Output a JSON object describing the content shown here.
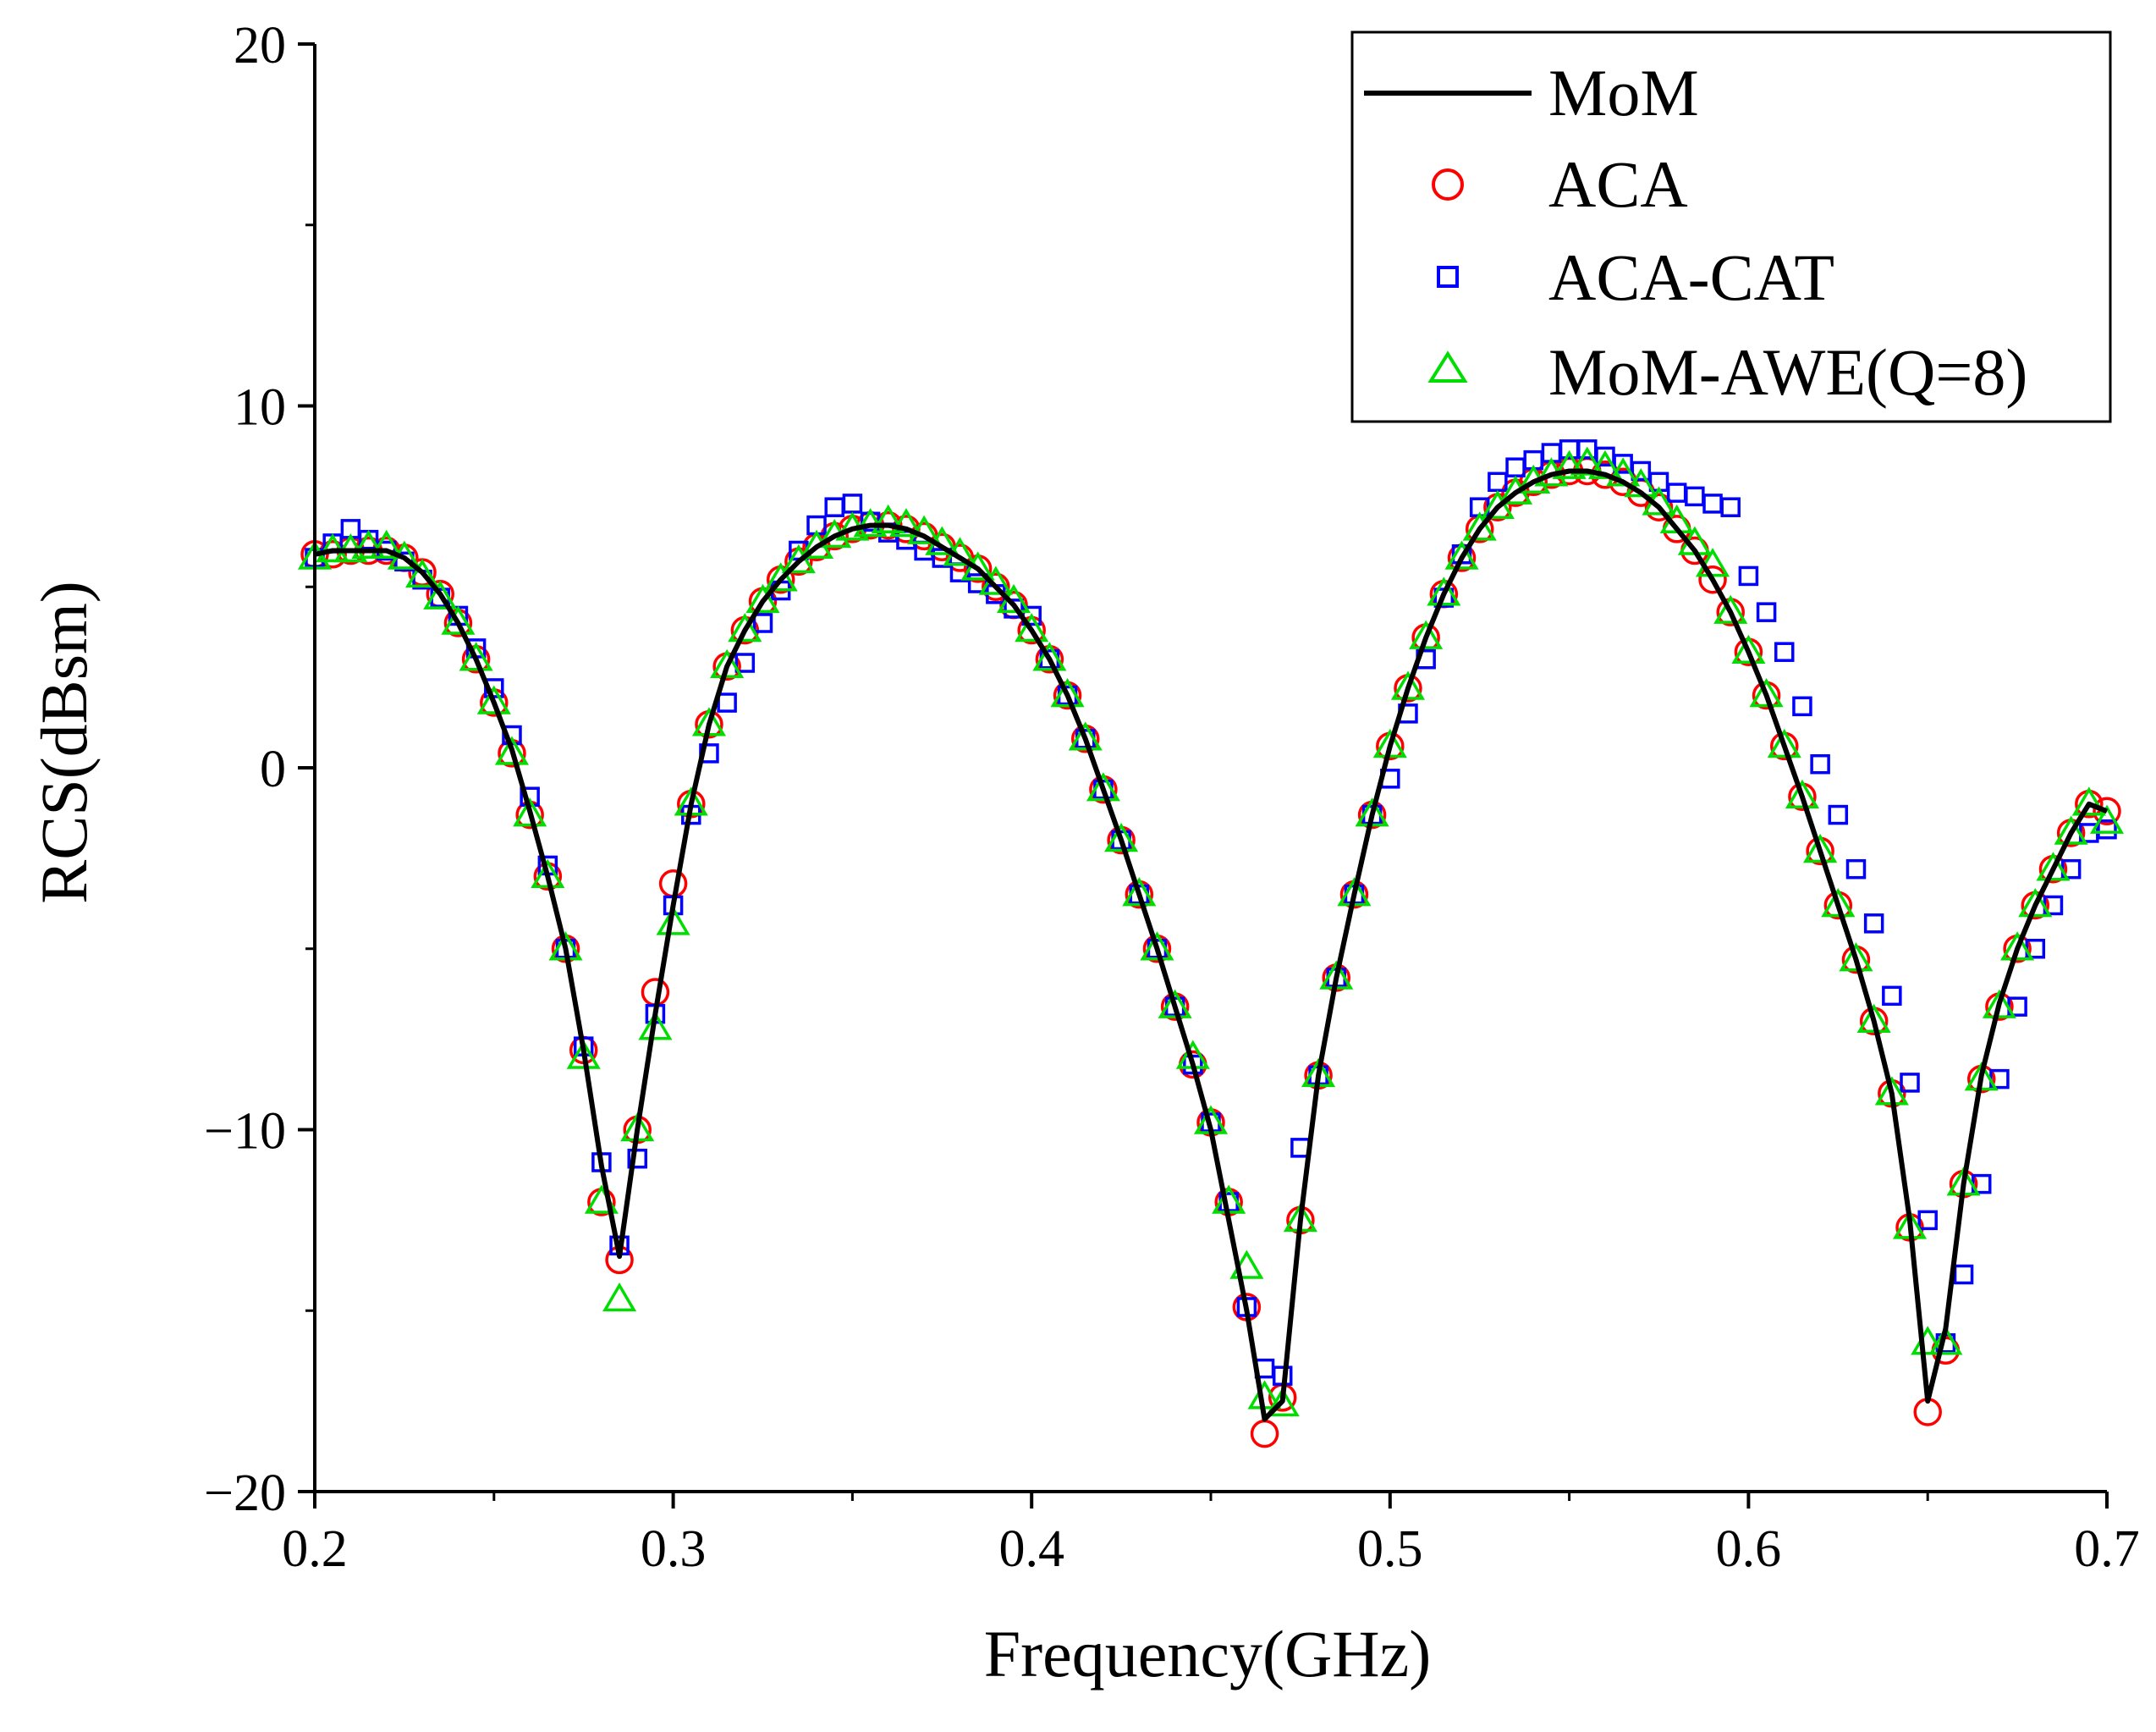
{
  "chart_data": {
    "type": "line",
    "title": "",
    "xlabel": "Frequency(GHz)",
    "ylabel": "RCS(dBsm)",
    "xlim": [
      0.2,
      0.7
    ],
    "ylim": [
      -20,
      20
    ],
    "xticks": [
      0.2,
      0.3,
      0.4,
      0.5,
      0.6,
      0.7
    ],
    "yticks": [
      -20,
      -10,
      0,
      10,
      20
    ],
    "xtick_labels": [
      "0.2",
      "0.3",
      "0.4",
      "0.5",
      "0.6",
      "0.7"
    ],
    "ytick_labels": [
      "−20",
      "−10",
      "0",
      "10",
      "20"
    ],
    "grid": false,
    "legend_position": "top-right",
    "colors": {
      "MoM": "#000000",
      "ACA": "#ff0000",
      "ACA-CAT": "#0000ff",
      "MoM-AWE(Q=8)": "#00dd00"
    },
    "series": [
      {
        "name": "MoM",
        "marker": "line",
        "x": [
          0.2,
          0.205,
          0.21,
          0.215,
          0.22,
          0.225,
          0.23,
          0.235,
          0.24,
          0.245,
          0.25,
          0.255,
          0.26,
          0.265,
          0.27,
          0.275,
          0.28,
          0.285,
          0.29,
          0.295,
          0.3,
          0.305,
          0.31,
          0.315,
          0.32,
          0.325,
          0.33,
          0.335,
          0.34,
          0.345,
          0.35,
          0.355,
          0.36,
          0.365,
          0.37,
          0.375,
          0.38,
          0.385,
          0.39,
          0.395,
          0.4,
          0.405,
          0.41,
          0.415,
          0.42,
          0.425,
          0.43,
          0.435,
          0.44,
          0.445,
          0.45,
          0.455,
          0.46,
          0.465,
          0.47,
          0.475,
          0.48,
          0.485,
          0.49,
          0.495,
          0.5,
          0.505,
          0.51,
          0.515,
          0.52,
          0.525,
          0.53,
          0.535,
          0.54,
          0.545,
          0.55,
          0.555,
          0.56,
          0.565,
          0.57,
          0.575,
          0.58,
          0.585,
          0.59,
          0.595,
          0.6,
          0.605,
          0.61,
          0.615,
          0.62,
          0.625,
          0.63,
          0.635,
          0.64,
          0.645,
          0.65,
          0.655,
          0.66,
          0.665,
          0.67,
          0.675,
          0.68,
          0.685,
          0.69,
          0.695,
          0.7
        ],
        "y": [
          5.9,
          6.0,
          6.0,
          6.0,
          6.0,
          5.8,
          5.4,
          4.8,
          4.0,
          3.0,
          1.8,
          0.5,
          -1.2,
          -3.0,
          -5.0,
          -7.8,
          -11.0,
          -13.5,
          -10.0,
          -6.8,
          -3.8,
          -1.0,
          1.2,
          2.8,
          3.8,
          4.6,
          5.2,
          5.7,
          6.1,
          6.4,
          6.6,
          6.7,
          6.7,
          6.6,
          6.4,
          6.1,
          5.8,
          5.5,
          5.0,
          4.5,
          3.8,
          3.0,
          2.0,
          0.8,
          -0.6,
          -2.0,
          -3.5,
          -5.0,
          -6.6,
          -8.2,
          -10.0,
          -12.5,
          -15.0,
          -18.0,
          -17.5,
          -12.5,
          -8.5,
          -5.8,
          -3.5,
          -1.3,
          0.6,
          2.2,
          3.6,
          4.8,
          5.8,
          6.6,
          7.2,
          7.6,
          7.9,
          8.1,
          8.2,
          8.2,
          8.1,
          7.9,
          7.6,
          7.2,
          6.6,
          6.0,
          5.2,
          4.3,
          3.2,
          2.0,
          0.6,
          -0.8,
          -2.3,
          -3.8,
          -5.3,
          -7.0,
          -9.0,
          -12.5,
          -17.5,
          -15.5,
          -11.5,
          -8.5,
          -6.5,
          -5.0,
          -3.8,
          -2.8,
          -1.8,
          -1.0,
          -1.2
        ]
      },
      {
        "name": "ACA",
        "marker": "circle",
        "x": [
          0.2,
          0.205,
          0.21,
          0.215,
          0.22,
          0.225,
          0.23,
          0.235,
          0.24,
          0.245,
          0.25,
          0.255,
          0.26,
          0.265,
          0.27,
          0.275,
          0.28,
          0.285,
          0.29,
          0.295,
          0.3,
          0.305,
          0.31,
          0.315,
          0.32,
          0.325,
          0.33,
          0.335,
          0.34,
          0.345,
          0.35,
          0.355,
          0.36,
          0.365,
          0.37,
          0.375,
          0.38,
          0.385,
          0.39,
          0.395,
          0.4,
          0.405,
          0.41,
          0.415,
          0.42,
          0.425,
          0.43,
          0.435,
          0.44,
          0.445,
          0.45,
          0.455,
          0.46,
          0.465,
          0.47,
          0.475,
          0.48,
          0.485,
          0.49,
          0.495,
          0.5,
          0.505,
          0.51,
          0.515,
          0.52,
          0.525,
          0.53,
          0.535,
          0.54,
          0.545,
          0.55,
          0.555,
          0.56,
          0.565,
          0.57,
          0.575,
          0.58,
          0.585,
          0.59,
          0.595,
          0.6,
          0.605,
          0.61,
          0.615,
          0.62,
          0.625,
          0.63,
          0.635,
          0.64,
          0.645,
          0.65,
          0.655,
          0.66,
          0.665,
          0.67,
          0.675,
          0.68,
          0.685,
          0.69,
          0.695,
          0.7
        ],
        "y": [
          5.9,
          5.9,
          6.0,
          6.0,
          6.0,
          5.8,
          5.4,
          4.8,
          4.0,
          3.0,
          1.8,
          0.4,
          -1.3,
          -3.0,
          -5.0,
          -7.8,
          -12.0,
          -13.6,
          -10.0,
          -6.2,
          -3.2,
          -1.0,
          1.2,
          2.8,
          3.8,
          4.6,
          5.2,
          5.7,
          6.1,
          6.4,
          6.6,
          6.7,
          6.7,
          6.6,
          6.4,
          6.1,
          5.8,
          5.5,
          5.0,
          4.5,
          3.8,
          3.0,
          2.0,
          0.8,
          -0.6,
          -2.0,
          -3.5,
          -5.0,
          -6.6,
          -8.2,
          -9.8,
          -12.0,
          -14.9,
          -18.4,
          -17.4,
          -12.5,
          -8.5,
          -5.8,
          -3.5,
          -1.3,
          0.6,
          2.2,
          3.6,
          4.8,
          5.8,
          6.6,
          7.2,
          7.6,
          7.9,
          8.1,
          8.2,
          8.2,
          8.1,
          7.9,
          7.6,
          7.2,
          6.6,
          6.0,
          5.2,
          4.3,
          3.2,
          2.0,
          0.6,
          -0.8,
          -2.3,
          -3.8,
          -5.3,
          -7.0,
          -9.0,
          -12.7,
          -17.8,
          -16.1,
          -11.5,
          -8.6,
          -6.6,
          -5.0,
          -3.8,
          -2.8,
          -1.8,
          -1.0,
          -1.2
        ]
      },
      {
        "name": "ACA-CAT",
        "marker": "square",
        "x": [
          0.2,
          0.205,
          0.21,
          0.215,
          0.22,
          0.225,
          0.23,
          0.235,
          0.24,
          0.245,
          0.25,
          0.255,
          0.26,
          0.265,
          0.27,
          0.275,
          0.28,
          0.285,
          0.29,
          0.295,
          0.3,
          0.305,
          0.31,
          0.315,
          0.32,
          0.325,
          0.33,
          0.335,
          0.34,
          0.345,
          0.35,
          0.355,
          0.36,
          0.365,
          0.37,
          0.375,
          0.38,
          0.385,
          0.39,
          0.395,
          0.4,
          0.405,
          0.41,
          0.415,
          0.42,
          0.425,
          0.43,
          0.435,
          0.44,
          0.445,
          0.45,
          0.455,
          0.46,
          0.465,
          0.47,
          0.475,
          0.48,
          0.485,
          0.49,
          0.495,
          0.5,
          0.505,
          0.51,
          0.515,
          0.52,
          0.525,
          0.53,
          0.535,
          0.54,
          0.545,
          0.55,
          0.555,
          0.56,
          0.565,
          0.57,
          0.575,
          0.58,
          0.585,
          0.59,
          0.595,
          0.6,
          0.605,
          0.61,
          0.615,
          0.62,
          0.625,
          0.63,
          0.635,
          0.64,
          0.645,
          0.65,
          0.655,
          0.66,
          0.665,
          0.67,
          0.675,
          0.68,
          0.685,
          0.69,
          0.695,
          0.7
        ],
        "y": [
          5.8,
          6.2,
          6.6,
          6.3,
          6.0,
          5.7,
          5.2,
          4.7,
          4.2,
          3.3,
          2.2,
          0.9,
          -0.8,
          -2.7,
          -5.0,
          -7.7,
          -10.9,
          -13.2,
          -10.8,
          -6.8,
          -3.8,
          -1.3,
          0.4,
          1.8,
          2.9,
          4.0,
          4.9,
          6.0,
          6.7,
          7.2,
          7.3,
          6.8,
          6.5,
          6.3,
          6.0,
          5.8,
          5.4,
          5.1,
          4.8,
          4.4,
          4.2,
          3.0,
          2.0,
          0.8,
          -0.6,
          -2.0,
          -3.5,
          -5.0,
          -6.6,
          -8.2,
          -9.8,
          -12.0,
          -14.9,
          -16.6,
          -16.8,
          -10.5,
          -8.5,
          -5.8,
          -3.5,
          -1.3,
          -0.3,
          1.5,
          3.0,
          4.7,
          5.9,
          7.2,
          7.9,
          8.3,
          8.5,
          8.7,
          8.8,
          8.8,
          8.6,
          8.4,
          8.2,
          7.9,
          7.6,
          7.5,
          7.3,
          7.2,
          5.3,
          4.3,
          3.2,
          1.7,
          0.1,
          -1.3,
          -2.8,
          -4.3,
          -6.3,
          -8.7,
          -12.5,
          -15.9,
          -14.0,
          -11.5,
          -8.6,
          -6.6,
          -5.0,
          -3.8,
          -2.8,
          -1.8,
          -1.7
        ]
      },
      {
        "name": "MoM-AWE(Q=8)",
        "marker": "triangle",
        "x": [
          0.2,
          0.205,
          0.21,
          0.215,
          0.22,
          0.225,
          0.23,
          0.235,
          0.24,
          0.245,
          0.25,
          0.255,
          0.26,
          0.265,
          0.27,
          0.275,
          0.28,
          0.285,
          0.29,
          0.295,
          0.3,
          0.305,
          0.31,
          0.315,
          0.32,
          0.325,
          0.33,
          0.335,
          0.34,
          0.345,
          0.35,
          0.355,
          0.36,
          0.365,
          0.37,
          0.375,
          0.38,
          0.385,
          0.39,
          0.395,
          0.4,
          0.405,
          0.41,
          0.415,
          0.42,
          0.425,
          0.43,
          0.435,
          0.44,
          0.445,
          0.45,
          0.455,
          0.46,
          0.465,
          0.47,
          0.475,
          0.48,
          0.485,
          0.49,
          0.495,
          0.5,
          0.505,
          0.51,
          0.515,
          0.52,
          0.525,
          0.53,
          0.535,
          0.54,
          0.545,
          0.55,
          0.555,
          0.56,
          0.565,
          0.57,
          0.575,
          0.58,
          0.585,
          0.59,
          0.595,
          0.6,
          0.605,
          0.61,
          0.615,
          0.62,
          0.625,
          0.63,
          0.635,
          0.64,
          0.645,
          0.65,
          0.655,
          0.66,
          0.665,
          0.67,
          0.675,
          0.68,
          0.685,
          0.69,
          0.695,
          0.7
        ],
        "y": [
          5.8,
          6.0,
          6.0,
          6.1,
          6.1,
          5.8,
          5.3,
          4.7,
          4.0,
          3.0,
          1.8,
          0.4,
          -1.3,
          -3.0,
          -5.0,
          -8.0,
          -12.0,
          -14.7,
          -10.0,
          -7.2,
          -4.3,
          -1.0,
          1.2,
          2.8,
          3.8,
          4.6,
          5.2,
          5.7,
          6.1,
          6.4,
          6.6,
          6.7,
          6.8,
          6.7,
          6.5,
          6.2,
          5.9,
          5.5,
          5.1,
          4.6,
          3.8,
          3.0,
          2.0,
          0.8,
          -0.6,
          -2.0,
          -3.5,
          -5.0,
          -6.6,
          -8.0,
          -9.8,
          -12.0,
          -13.8,
          -17.4,
          -17.6,
          -12.5,
          -8.5,
          -5.8,
          -3.5,
          -1.3,
          0.6,
          2.2,
          3.6,
          4.8,
          5.8,
          6.6,
          7.2,
          7.6,
          7.9,
          8.1,
          8.3,
          8.4,
          8.3,
          8.1,
          7.8,
          7.3,
          6.8,
          6.2,
          5.6,
          4.3,
          3.2,
          2.0,
          0.6,
          -0.8,
          -2.3,
          -3.8,
          -5.3,
          -7.0,
          -9.0,
          -12.7,
          -15.9,
          -15.9,
          -11.5,
          -8.6,
          -6.6,
          -5.0,
          -3.8,
          -2.8,
          -1.8,
          -1.0,
          -1.5
        ]
      }
    ]
  }
}
